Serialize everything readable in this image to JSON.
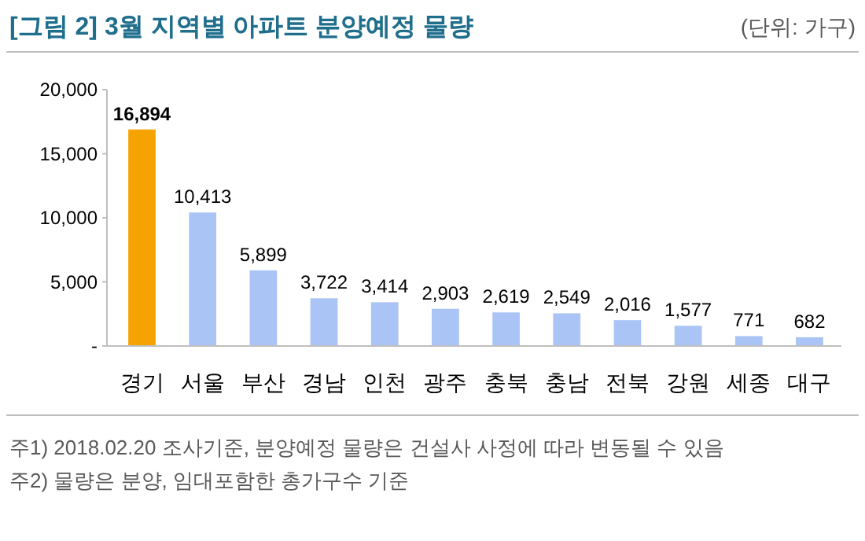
{
  "chart_data": {
    "type": "bar",
    "title": "[그림 2] 3월 지역별 아파트 분양예정 물량",
    "subtitle": "(단위: 가구)",
    "categories": [
      "경기",
      "서울",
      "부산",
      "경남",
      "인천",
      "광주",
      "충북",
      "충남",
      "전북",
      "강원",
      "세종",
      "대구"
    ],
    "values": [
      16894,
      10413,
      5899,
      3722,
      3414,
      2903,
      2619,
      2549,
      2016,
      1577,
      771,
      682
    ],
    "value_labels": [
      "16,894",
      "10,413",
      "5,899",
      "3,722",
      "3,414",
      "2,903",
      "2,619",
      "2,549",
      "2,016",
      "1,577",
      "771",
      "682"
    ],
    "colors": [
      "#f5a300",
      "#a9c4f5",
      "#a9c4f5",
      "#a9c4f5",
      "#a9c4f5",
      "#a9c4f5",
      "#a9c4f5",
      "#a9c4f5",
      "#a9c4f5",
      "#a9c4f5",
      "#a9c4f5",
      "#a9c4f5"
    ],
    "ylim": [
      0,
      20000
    ],
    "yticks": [
      {
        "value": 0,
        "label": "-"
      },
      {
        "value": 5000,
        "label": "5,000"
      },
      {
        "value": 10000,
        "label": "10,000"
      },
      {
        "value": 15000,
        "label": "15,000"
      },
      {
        "value": 20000,
        "label": "20,000"
      }
    ],
    "annotations": [
      "주1) 2018.02.20 조사기준, 분양예정 물량은 건설사 사정에 따라 변동될 수 있음",
      "주2) 물량은 분양, 임대포함한 총가구수 기준"
    ]
  }
}
